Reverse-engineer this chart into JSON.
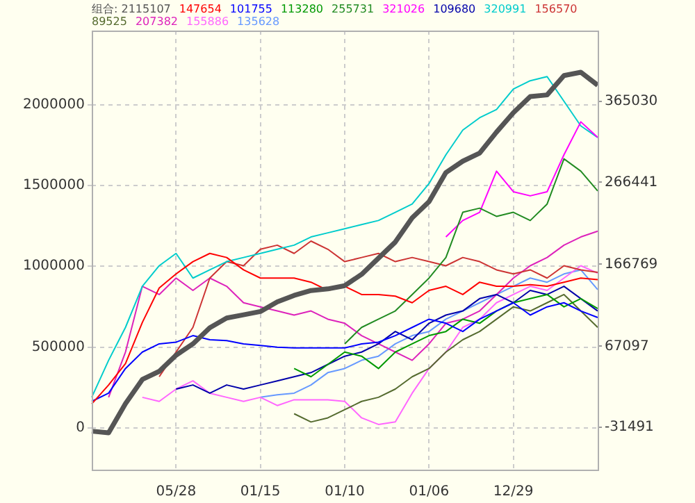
{
  "chart_data": {
    "type": "line",
    "categories": [
      null,
      null,
      null,
      null,
      null,
      "05/28",
      null,
      null,
      null,
      null,
      "01/15",
      null,
      null,
      null,
      null,
      "01/10",
      null,
      null,
      null,
      null,
      "01/06",
      null,
      null,
      null,
      null,
      "12/29",
      null,
      null,
      null,
      null,
      null
    ],
    "series": [
      {
        "name": "组合: 2115107",
        "color": "#555555",
        "values": [
          -20000,
          -30000,
          150000,
          300000,
          350000,
          450000,
          520000,
          620000,
          680000,
          700000,
          720000,
          780000,
          820000,
          850000,
          860000,
          880000,
          950000,
          1050000,
          1150000,
          1300000,
          1400000,
          1580000,
          1650000,
          1700000,
          1830000,
          1950000,
          2050000,
          2060000,
          2180000,
          2200000,
          2120000
        ]
      },
      {
        "name": "147654",
        "color": "#ff0000",
        "axis": "y2",
        "values": [
          -3000,
          20000,
          46000,
          96000,
          138000,
          155000,
          170000,
          180000,
          175000,
          160000,
          150000,
          150000,
          150000,
          145000,
          135000,
          140000,
          130000,
          130000,
          128000,
          120000,
          135000,
          140000,
          130000,
          145000,
          140000,
          140000,
          142000,
          140000,
          145000,
          150000,
          148000
        ]
      },
      {
        "name": "101755",
        "color": "#0000ff",
        "axis": "y2",
        "values": [
          0,
          10000,
          40000,
          60000,
          70000,
          72000,
          80000,
          75000,
          74000,
          70000,
          68000,
          66000,
          65000,
          65000,
          65000,
          65000,
          70000,
          72000,
          80000,
          90000,
          100000,
          95000,
          85000,
          100000,
          110000,
          120000,
          105000,
          115000,
          120000,
          110000,
          102000
        ]
      },
      {
        "name": "113280",
        "color": "#009900",
        "axis": "y2",
        "values": [
          null,
          null,
          null,
          null,
          null,
          null,
          null,
          null,
          null,
          null,
          null,
          null,
          40000,
          30000,
          45000,
          60000,
          55000,
          40000,
          60000,
          70000,
          80000,
          85000,
          100000,
          95000,
          110000,
          120000,
          125000,
          130000,
          115000,
          125000,
          113000
        ]
      },
      {
        "name": "255731",
        "color": "#228b22",
        "axis": "y2",
        "values": [
          null,
          null,
          null,
          null,
          null,
          null,
          null,
          null,
          null,
          null,
          null,
          null,
          null,
          null,
          null,
          70000,
          90000,
          100000,
          110000,
          130000,
          150000,
          175000,
          230000,
          235000,
          225000,
          230000,
          220000,
          240000,
          295000,
          280000,
          256000
        ]
      },
      {
        "name": "321026",
        "color": "#ff00ff",
        "axis": "y2",
        "values": [
          null,
          null,
          null,
          null,
          null,
          null,
          null,
          null,
          null,
          null,
          null,
          null,
          null,
          null,
          null,
          null,
          null,
          null,
          null,
          null,
          null,
          200000,
          220000,
          230000,
          280000,
          255000,
          250000,
          255000,
          300000,
          340000,
          321000
        ]
      },
      {
        "name": "109680",
        "color": "#0000aa",
        "axis": "y2",
        "values": [
          null,
          null,
          null,
          null,
          null,
          15000,
          20000,
          10000,
          20000,
          15000,
          20000,
          25000,
          30000,
          35000,
          45000,
          55000,
          60000,
          70000,
          85000,
          75000,
          95000,
          105000,
          110000,
          125000,
          130000,
          120000,
          135000,
          130000,
          140000,
          125000,
          110000
        ]
      },
      {
        "name": "320991",
        "color": "#00cccc",
        "axis": "y2",
        "values": [
          5000,
          50000,
          90000,
          140000,
          165000,
          180000,
          150000,
          160000,
          170000,
          175000,
          180000,
          185000,
          190000,
          200000,
          205000,
          210000,
          215000,
          220000,
          230000,
          240000,
          265000,
          300000,
          330000,
          345000,
          355000,
          380000,
          390000,
          395000,
          365000,
          335000,
          321000
        ]
      },
      {
        "name": "156570",
        "color": "#cc3333",
        "axis": "y2",
        "values": [
          null,
          null,
          null,
          null,
          30000,
          60000,
          90000,
          150000,
          170000,
          165000,
          185000,
          190000,
          180000,
          195000,
          185000,
          170000,
          175000,
          180000,
          170000,
          175000,
          170000,
          165000,
          175000,
          170000,
          160000,
          155000,
          160000,
          150000,
          165000,
          160000,
          157000
        ]
      },
      {
        "name": "89525",
        "color": "#556b2f",
        "axis": "y2",
        "values": [
          null,
          null,
          null,
          null,
          null,
          null,
          null,
          null,
          null,
          null,
          null,
          null,
          -15000,
          -25000,
          -20000,
          -10000,
          0,
          5000,
          15000,
          30000,
          40000,
          60000,
          75000,
          85000,
          100000,
          115000,
          110000,
          120000,
          130000,
          110000,
          90000
        ]
      },
      {
        "name": "207382",
        "color": "#dd22bb",
        "axis": "y2",
        "values": [
          null,
          5000,
          60000,
          140000,
          130000,
          150000,
          135000,
          150000,
          140000,
          120000,
          115000,
          110000,
          105000,
          110000,
          100000,
          95000,
          80000,
          70000,
          60000,
          50000,
          70000,
          95000,
          100000,
          110000,
          130000,
          150000,
          165000,
          175000,
          190000,
          200000,
          207000
        ]
      },
      {
        "name": "155886",
        "color": "#ff66ff",
        "axis": "y2",
        "values": [
          null,
          null,
          null,
          5000,
          0,
          15000,
          25000,
          10000,
          5000,
          0,
          5000,
          -5000,
          2000,
          2000,
          2000,
          0,
          -20000,
          -28000,
          -25000,
          10000,
          40000,
          60000,
          90000,
          100000,
          120000,
          130000,
          140000,
          135000,
          150000,
          165000,
          156000
        ]
      },
      {
        "name": "135628",
        "color": "#6699ff",
        "axis": "y2",
        "values": [
          null,
          null,
          null,
          null,
          null,
          null,
          null,
          null,
          null,
          null,
          5000,
          8000,
          10000,
          20000,
          35000,
          40000,
          50000,
          55000,
          70000,
          80000,
          85000,
          100000,
          110000,
          120000,
          130000,
          140000,
          150000,
          145000,
          155000,
          160000,
          136000
        ]
      }
    ],
    "ylim": [
      -258000,
      2458000
    ],
    "yticks": [
      0,
      500000,
      1000000,
      1500000,
      2000000
    ],
    "y2lim": [
      -83000,
      451000
    ],
    "y2ticks": [
      -31491,
      67097,
      166769,
      266441,
      365030
    ],
    "grid": true,
    "legend": "top"
  }
}
